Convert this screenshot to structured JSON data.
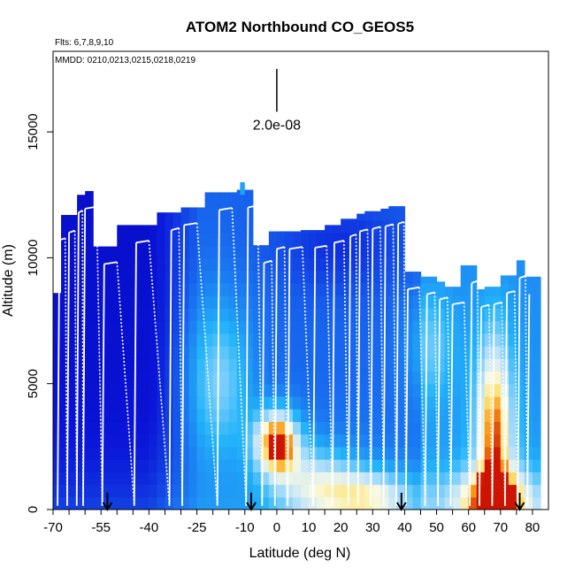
{
  "chart_data": {
    "type": "heatmap",
    "title": "ATOM2 Northbound CO_GEOS5",
    "subtitle_flights": "Flts: 6,7,8,9,10",
    "subtitle_dates": "MMDD: 0210,0213,0215,0218,0219",
    "xlabel": "Latitude (deg N)",
    "ylabel": "Altitude (m)",
    "xlim": [
      -70,
      85
    ],
    "ylim": [
      0,
      18200
    ],
    "xticks": [
      -70,
      -55,
      -40,
      -25,
      -10,
      0,
      10,
      20,
      30,
      40,
      50,
      60,
      70,
      80
    ],
    "xtick_labels": [
      "-70",
      "-55",
      "-40",
      "-25",
      "-10",
      "0",
      "10",
      "20",
      "30",
      "40",
      "50",
      "60",
      "70",
      "80"
    ],
    "yticks": [
      0,
      5000,
      10000,
      15000
    ],
    "ytick_labels": [
      "0",
      "5000",
      "10000",
      "15000"
    ],
    "scale_bar_label": "2.0e-08",
    "scale_bar_x": 0,
    "scale_bar_y_range": [
      15800,
      17500
    ],
    "profile_tops": [
      [
        -68,
        10700
      ],
      [
        -65,
        11000
      ],
      [
        -62,
        11800
      ],
      [
        -60,
        11950
      ],
      [
        -54,
        9750
      ],
      [
        -44,
        10600
      ],
      [
        -33,
        11100
      ],
      [
        -29,
        11300
      ],
      [
        -18,
        11900
      ],
      [
        -9,
        12000
      ],
      [
        -4,
        9800
      ],
      [
        0,
        10350
      ],
      [
        4,
        10350
      ],
      [
        12,
        10400
      ],
      [
        18,
        10600
      ],
      [
        23,
        10850
      ],
      [
        26,
        11050
      ],
      [
        30,
        11150
      ],
      [
        34,
        11250
      ],
      [
        38,
        11350
      ],
      [
        41,
        8750
      ],
      [
        47,
        8550
      ],
      [
        51,
        8350
      ],
      [
        55,
        8150
      ],
      [
        61,
        9000
      ],
      [
        64,
        8050
      ],
      [
        68,
        8150
      ],
      [
        72,
        8600
      ],
      [
        76,
        9200
      ],
      [
        79,
        8550
      ]
    ],
    "arrow_latitudes": [
      -53,
      -8,
      39,
      76
    ],
    "color_scale": "blue (low CO) to white to yellow/red (high CO)"
  }
}
